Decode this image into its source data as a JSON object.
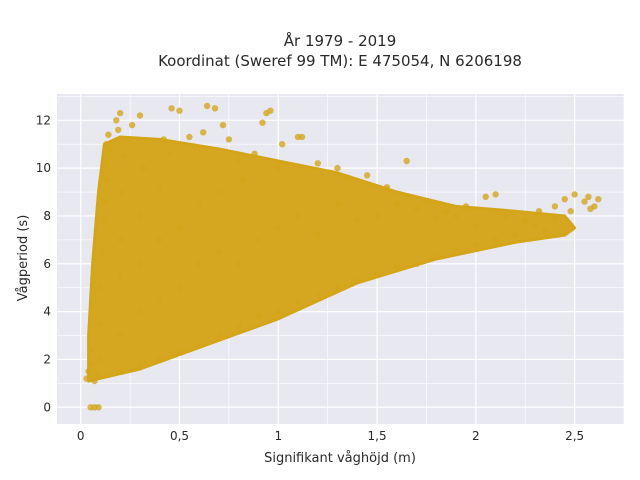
{
  "chart_data": {
    "type": "scatter",
    "title_line1": "År 1979 - 2019",
    "title_line2": "Koordinat (Sweref 99 TM): E 475054, N 6206198",
    "xlabel": "Signifikant våghöjd (m)",
    "ylabel": "Vågperiod (s)",
    "xlim": [
      -0.12,
      2.75
    ],
    "ylim": [
      -0.7,
      13.1
    ],
    "x_ticks": [
      0,
      0.5,
      1,
      1.5,
      2,
      2.5
    ],
    "x_tick_labels": [
      "0",
      "0,5",
      "1",
      "1,5",
      "2",
      "2,5"
    ],
    "y_ticks": [
      0,
      2,
      4,
      6,
      8,
      10,
      12
    ],
    "y_tick_labels": [
      "0",
      "2",
      "4",
      "6",
      "8",
      "10",
      "12"
    ],
    "grid": true,
    "marker_color": "#D4A419",
    "background_color": "#E8E8F1",
    "grid_color": "#FFFFFF",
    "series": [
      {
        "points": [
          [
            0.03,
            1.2
          ],
          [
            0.04,
            1.5
          ],
          [
            0.05,
            2.4
          ],
          [
            0.06,
            1.8
          ],
          [
            0.07,
            1.1
          ],
          [
            0.08,
            1.3
          ],
          [
            0.05,
            0.0
          ],
          [
            0.07,
            0.0
          ],
          [
            0.09,
            0.0
          ],
          [
            0.1,
            2.0
          ],
          [
            0.1,
            3.5
          ],
          [
            0.1,
            5.0
          ],
          [
            0.11,
            6.5
          ],
          [
            0.12,
            7.8
          ],
          [
            0.12,
            8.6
          ],
          [
            0.13,
            9.5
          ],
          [
            0.12,
            10.2
          ],
          [
            0.13,
            11.0
          ],
          [
            0.14,
            11.4
          ],
          [
            0.15,
            10.8
          ],
          [
            0.2,
            1.5
          ],
          [
            0.2,
            3.0
          ],
          [
            0.2,
            5.5
          ],
          [
            0.2,
            7.0
          ],
          [
            0.21,
            9.0
          ],
          [
            0.22,
            10.5
          ],
          [
            0.18,
            12.0
          ],
          [
            0.19,
            11.6
          ],
          [
            0.2,
            12.3
          ],
          [
            0.26,
            11.8
          ],
          [
            0.3,
            12.2
          ],
          [
            0.3,
            1.7
          ],
          [
            0.3,
            4.0
          ],
          [
            0.3,
            6.0
          ],
          [
            0.3,
            8.0
          ],
          [
            0.32,
            10.0
          ],
          [
            0.4,
            2.0
          ],
          [
            0.4,
            4.5
          ],
          [
            0.4,
            7.0
          ],
          [
            0.4,
            9.2
          ],
          [
            0.42,
            11.2
          ],
          [
            0.45,
            10.6
          ],
          [
            0.46,
            12.5
          ],
          [
            0.5,
            12.4
          ],
          [
            0.55,
            11.3
          ],
          [
            0.5,
            2.3
          ],
          [
            0.5,
            5.0
          ],
          [
            0.5,
            7.5
          ],
          [
            0.6,
            2.6
          ],
          [
            0.6,
            6.0
          ],
          [
            0.6,
            8.5
          ],
          [
            0.62,
            11.5
          ],
          [
            0.64,
            12.6
          ],
          [
            0.68,
            12.5
          ],
          [
            0.7,
            3.0
          ],
          [
            0.7,
            6.5
          ],
          [
            0.7,
            9.0
          ],
          [
            0.72,
            11.8
          ],
          [
            0.75,
            11.2
          ],
          [
            0.8,
            10.3
          ],
          [
            0.8,
            3.4
          ],
          [
            0.8,
            6.0
          ],
          [
            0.82,
            9.5
          ],
          [
            0.88,
            10.6
          ],
          [
            0.9,
            3.8
          ],
          [
            0.9,
            7.0
          ],
          [
            0.92,
            11.9
          ],
          [
            0.94,
            12.3
          ],
          [
            0.96,
            12.4
          ],
          [
            1.0,
            4.0
          ],
          [
            1.0,
            7.5
          ],
          [
            1.0,
            10.0
          ],
          [
            1.02,
            11.0
          ],
          [
            1.1,
            11.3
          ],
          [
            1.12,
            11.3
          ],
          [
            1.1,
            4.4
          ],
          [
            1.1,
            8.0
          ],
          [
            1.2,
            4.7
          ],
          [
            1.2,
            7.2
          ],
          [
            1.2,
            10.2
          ],
          [
            1.3,
            5.0
          ],
          [
            1.3,
            8.5
          ],
          [
            1.3,
            10.0
          ],
          [
            1.35,
            9.6
          ],
          [
            1.4,
            5.3
          ],
          [
            1.4,
            7.8
          ],
          [
            1.45,
            9.7
          ],
          [
            1.5,
            5.6
          ],
          [
            1.5,
            8.0
          ],
          [
            1.55,
            9.2
          ],
          [
            1.6,
            5.9
          ],
          [
            1.6,
            8.5
          ],
          [
            1.65,
            10.3
          ],
          [
            1.7,
            6.0
          ],
          [
            1.7,
            8.3
          ],
          [
            1.75,
            8.6
          ],
          [
            1.8,
            6.3
          ],
          [
            1.8,
            7.9
          ],
          [
            1.85,
            8.2
          ],
          [
            1.9,
            6.6
          ],
          [
            1.9,
            8.0
          ],
          [
            1.95,
            8.4
          ],
          [
            2.0,
            6.8
          ],
          [
            2.0,
            7.6
          ],
          [
            2.05,
            8.8
          ],
          [
            2.1,
            8.9
          ],
          [
            2.1,
            7.0
          ],
          [
            2.15,
            8.0
          ],
          [
            2.2,
            7.2
          ],
          [
            2.25,
            7.8
          ],
          [
            2.3,
            7.6
          ],
          [
            2.32,
            8.2
          ],
          [
            2.35,
            7.4
          ],
          [
            2.4,
            7.9
          ],
          [
            2.4,
            8.4
          ],
          [
            2.45,
            8.7
          ],
          [
            2.48,
            8.2
          ],
          [
            2.5,
            8.9
          ],
          [
            2.55,
            8.6
          ],
          [
            2.57,
            8.8
          ],
          [
            2.6,
            8.4
          ],
          [
            2.62,
            8.7
          ],
          [
            2.58,
            8.3
          ]
        ]
      }
    ]
  }
}
